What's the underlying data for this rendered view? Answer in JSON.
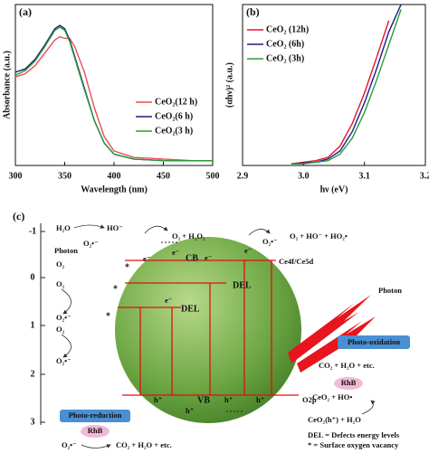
{
  "chart_data": [
    {
      "type": "line",
      "panel_label": "(a)",
      "x_label": "Wavelength (nm)",
      "y_label": "Absorbance (a.u.)",
      "xlim": [
        300,
        500
      ],
      "xticks": [
        300,
        350,
        400,
        450,
        500
      ],
      "ylim": [
        0,
        1
      ],
      "legend": "lower right",
      "x": [
        300,
        310,
        320,
        330,
        340,
        345,
        350,
        355,
        360,
        370,
        380,
        390,
        400,
        420,
        450,
        480,
        500
      ],
      "series": [
        {
          "name": "CeO₂(12 h)",
          "color": "#ee4b55",
          "values": [
            0.55,
            0.57,
            0.62,
            0.7,
            0.78,
            0.8,
            0.79,
            0.79,
            0.74,
            0.58,
            0.36,
            0.18,
            0.09,
            0.05,
            0.04,
            0.03,
            0.03
          ]
        },
        {
          "name": "CeO₂(6 h)",
          "color": "#1c1c7c",
          "values": [
            0.58,
            0.6,
            0.66,
            0.75,
            0.85,
            0.87,
            0.85,
            0.78,
            0.68,
            0.48,
            0.28,
            0.14,
            0.07,
            0.04,
            0.03,
            0.03,
            0.03
          ]
        },
        {
          "name": "CeO₂(3 h)",
          "color": "#2a9a3a",
          "values": [
            0.56,
            0.59,
            0.65,
            0.74,
            0.84,
            0.86,
            0.84,
            0.77,
            0.67,
            0.47,
            0.28,
            0.14,
            0.07,
            0.04,
            0.03,
            0.03,
            0.03
          ]
        }
      ]
    },
    {
      "type": "line",
      "panel_label": "(b)",
      "x_label": "hν (eV)",
      "y_label": "(αhν)² (a.u.)",
      "xlim": [
        2.9,
        3.2
      ],
      "xticks": [
        2.9,
        {
          "value": 3,
          "label": "3.0"
        },
        3.1,
        3.2
      ],
      "ylim": [
        0,
        1
      ],
      "legend": "upper left",
      "x": [
        2.98,
        3.0,
        3.02,
        3.04,
        3.06,
        3.08,
        3.1,
        3.12,
        3.14,
        3.16
      ],
      "series": [
        {
          "name": "CeO₂ (12h)",
          "color": "#e8102a",
          "values": [
            0.01,
            0.02,
            0.03,
            0.05,
            0.12,
            0.26,
            0.45,
            0.67,
            0.9,
            null
          ]
        },
        {
          "name": "CeO₂ (6h)",
          "color": "#1c1c8c",
          "values": [
            0.01,
            0.015,
            0.02,
            0.04,
            0.09,
            0.21,
            0.39,
            0.6,
            0.83,
            1.0
          ]
        },
        {
          "name": "CeO₂ (3h)",
          "color": "#2a9a3a",
          "values": [
            0.01,
            0.01,
            0.02,
            0.03,
            0.07,
            0.17,
            0.33,
            0.53,
            0.75,
            0.97
          ]
        }
      ]
    }
  ],
  "diagram": {
    "panel_label": "(c)",
    "potential_scale": [
      "-1",
      "0",
      "1",
      "2",
      "3"
    ],
    "top": {
      "h2o": "H₂O",
      "ho_minus": "HO⁻",
      "o2_radical": "O₂•⁻",
      "products_1": "O₂ + H₂O₂",
      "o2_radical_2": "O₂•⁻",
      "products_2": "O₂ + HO⁻ + HO₂•"
    },
    "left": {
      "photon": "Photon",
      "species": [
        "O₂",
        "O₂",
        "O₂•⁻",
        "O₂",
        "O₂•⁻"
      ]
    },
    "bands": {
      "cb": "CB",
      "vb": "VB",
      "del_1": "DEL",
      "del_2": "DEL",
      "ce_level": "Ce4f/Ce5d",
      "o_level": "O2p",
      "electrons": [
        "e⁻",
        "e⁻",
        "e⁻",
        "e⁻",
        "e⁻"
      ],
      "holes": [
        "h⁺",
        "h⁺",
        "h⁺",
        "h⁺"
      ],
      "vacancy_marks": [
        "*",
        "*",
        "*"
      ]
    },
    "oxidation": {
      "photon": "Photon",
      "title": "Photo-oxidation",
      "products": "CO₂ + H₂O + etc.",
      "dye": "RhB",
      "reactant": "CeO₂ + HO•",
      "source": "CeO₂(h⁺) + H₂O"
    },
    "reduction": {
      "title": "Photo-reduction",
      "dye": "RhB",
      "radical": "O₂•⁻",
      "products": "CO₂ + H₂O + etc."
    },
    "notes": [
      "DEL = Defects energy levels",
      "* = Surface oxygen vacancy"
    ]
  }
}
